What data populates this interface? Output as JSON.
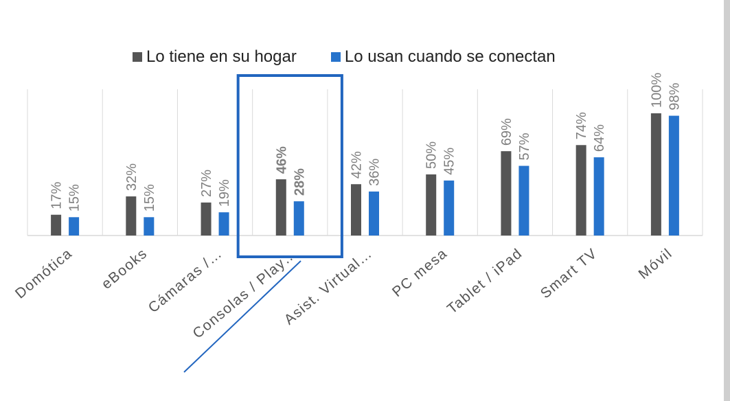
{
  "colors": {
    "series1": "#555555",
    "series2": "#2673cc",
    "grid": "#d9d9d9",
    "label": "#7f7f7f",
    "bold_label": "#7f7f7f",
    "axis_text": "#555555",
    "highlight": "#2165bf"
  },
  "chart_data": {
    "type": "bar",
    "categories": [
      "Domótica",
      "eBooks",
      "Cámaras /…",
      "Consolas / Play…",
      "Asist. Virtual…",
      "PC mesa",
      "Tablet / iPad",
      "Smart TV",
      "Móvil"
    ],
    "series": [
      {
        "name": "Lo tiene en su hogar",
        "values": [
          17,
          32,
          27,
          46,
          42,
          50,
          69,
          74,
          100
        ],
        "labels": [
          "17%",
          "32%",
          "27%",
          "46%",
          "42%",
          "50%",
          "69%",
          "74%",
          "100%"
        ]
      },
      {
        "name": "Lo usan cuando se conectan",
        "values": [
          15,
          15,
          19,
          28,
          36,
          45,
          57,
          64,
          98
        ],
        "labels": [
          "15%",
          "15%",
          "19%",
          "28%",
          "36%",
          "45%",
          "57%",
          "64%",
          "98%"
        ]
      }
    ],
    "highlighted_category_index": 3,
    "ylim": [
      0,
      100
    ],
    "grid": "vertical category separators",
    "legend_position": "top"
  }
}
